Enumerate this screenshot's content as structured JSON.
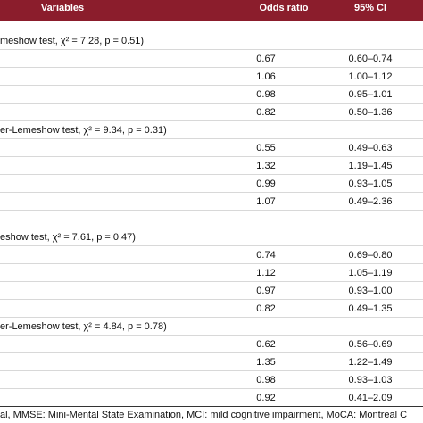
{
  "header": {
    "variables": "Variables",
    "odds_ratio": "Odds ratio",
    "ci": "95% CI"
  },
  "groups": [
    {
      "heading": "meshow test, χ² = 7.28, p = 0.51)",
      "rows": [
        [
          "0.67",
          "0.60–0.74"
        ],
        [
          "1.06",
          "1.00–1.12"
        ],
        [
          "0.98",
          "0.95–1.01"
        ],
        [
          "0.82",
          "0.50–1.36"
        ]
      ]
    },
    {
      "heading": "er-Lemeshow test, χ² = 9.34, p = 0.31)",
      "rows": [
        [
          "0.55",
          "0.49–0.63"
        ],
        [
          "1.32",
          "1.19–1.45"
        ],
        [
          "0.99",
          "0.93–1.05"
        ],
        [
          "1.07",
          "0.49–2.36"
        ]
      ]
    },
    {
      "heading": "eshow test, χ² = 7.61, p = 0.47)",
      "rows": [
        [
          "0.74",
          "0.69–0.80"
        ],
        [
          "1.12",
          "1.05–1.19"
        ],
        [
          "0.97",
          "0.93–1.00"
        ],
        [
          "0.82",
          "0.49–1.35"
        ]
      ]
    },
    {
      "heading": "er-Lemeshow test, χ² = 4.84, p = 0.78)",
      "rows": [
        [
          "0.62",
          "0.56–0.69"
        ],
        [
          "1.35",
          "1.22–1.49"
        ],
        [
          "0.98",
          "0.93–1.03"
        ],
        [
          "0.92",
          "0.41–2.09"
        ]
      ]
    }
  ],
  "footnote": "al, MMSE: Mini-Mental State Examination, MCI: mild cognitive impairment, MoCA: Montreal C"
}
